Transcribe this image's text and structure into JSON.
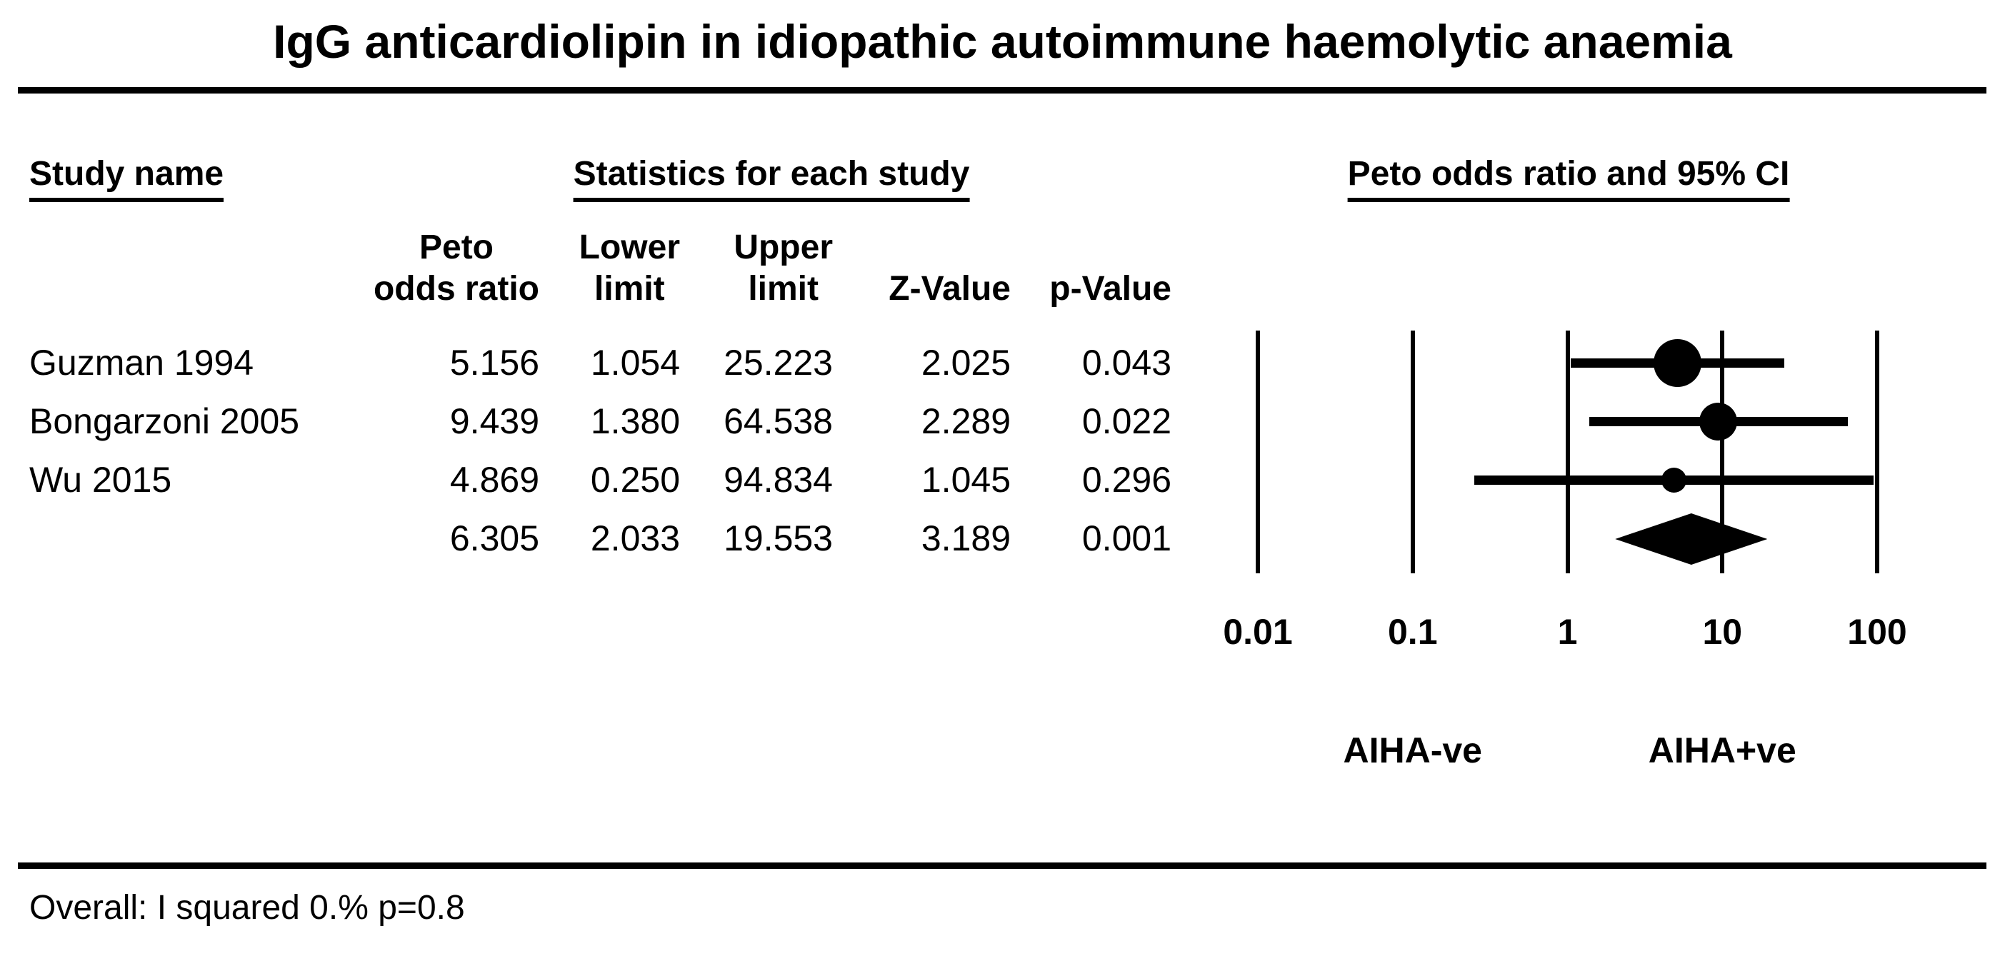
{
  "title": "IgG anticardiolipin in idiopathic autoimmune haemolytic anaemia",
  "table": {
    "study_col_header": "Study name",
    "stats_group_header": "Statistics for each study",
    "plot_group_header": "Peto odds ratio and 95% CI",
    "columns": [
      [
        "Peto",
        "odds ratio"
      ],
      [
        "Lower",
        "limit"
      ],
      [
        "Upper",
        "limit"
      ],
      [
        "",
        "Z-Value"
      ],
      [
        "",
        "p-Value"
      ]
    ],
    "rows": [
      {
        "study": "Guzman 1994",
        "peto_odds_ratio": "5.156",
        "lower_limit": "1.054",
        "upper_limit": "25.223",
        "z_value": "2.025",
        "p_value": "0.043"
      },
      {
        "study": "Bongarzoni 2005",
        "peto_odds_ratio": "9.439",
        "lower_limit": "1.380",
        "upper_limit": "64.538",
        "z_value": "2.289",
        "p_value": "0.022"
      },
      {
        "study": "Wu 2015",
        "peto_odds_ratio": "4.869",
        "lower_limit": "0.250",
        "upper_limit": "94.834",
        "z_value": "1.045",
        "p_value": "0.296"
      },
      {
        "study": "",
        "peto_odds_ratio": "6.305",
        "lower_limit": "2.033",
        "upper_limit": "19.553",
        "z_value": "3.189",
        "p_value": "0.001"
      }
    ]
  },
  "chart_data": {
    "type": "forest",
    "x_scale": "log10",
    "x_range": [
      0.01,
      100
    ],
    "x_ticks": [
      "0.01",
      "0.1",
      "1",
      "10",
      "100"
    ],
    "studies": [
      {
        "name": "Guzman 1994",
        "peto_odds_ratio": 5.156,
        "lower": 1.054,
        "upper": 25.223,
        "marker_diameter_px": 67
      },
      {
        "name": "Bongarzoni 2005",
        "peto_odds_ratio": 9.439,
        "lower": 1.38,
        "upper": 64.538,
        "marker_diameter_px": 53
      },
      {
        "name": "Wu 2015",
        "peto_odds_ratio": 4.869,
        "lower": 0.25,
        "upper": 94.834,
        "marker_diameter_px": 35
      }
    ],
    "overall": {
      "peto_odds_ratio": 6.305,
      "lower": 2.033,
      "upper": 19.553
    },
    "direction_labels": {
      "left": "AIHA-ve",
      "right": "AIHA+ve"
    },
    "direction_label_anchors": [
      0.1,
      10
    ],
    "marker_color": "#000000",
    "background_color": "#ffffff",
    "grid": true,
    "legend_position": "none"
  },
  "footer": {
    "heterogeneity": "Overall: I squared 0.% p=0.8"
  }
}
